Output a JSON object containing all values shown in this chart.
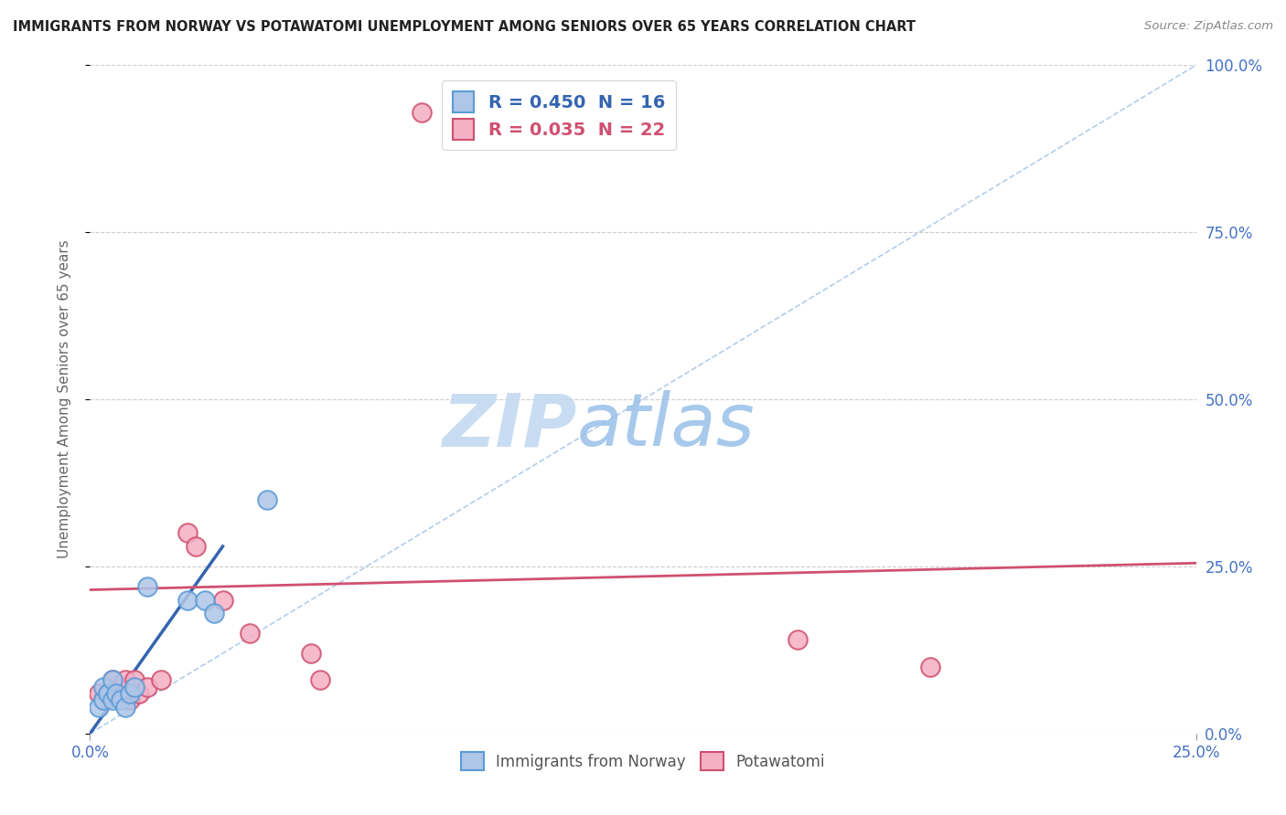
{
  "title": "IMMIGRANTS FROM NORWAY VS POTAWATOMI UNEMPLOYMENT AMONG SENIORS OVER 65 YEARS CORRELATION CHART",
  "source": "Source: ZipAtlas.com",
  "ylabel": "Unemployment Among Seniors over 65 years",
  "xlim": [
    0.0,
    0.25
  ],
  "ylim": [
    0.0,
    1.0
  ],
  "ytick_vals": [
    0.0,
    0.25,
    0.5,
    0.75,
    1.0
  ],
  "ytick_labels": [
    "0.0%",
    "25.0%",
    "50.0%",
    "75.0%",
    "100.0%"
  ],
  "xtick_vals": [
    0.0,
    0.25
  ],
  "xtick_labels": [
    "0.0%",
    "25.0%"
  ],
  "norway_color": "#aec6e8",
  "norway_edge": "#5b9bd5",
  "potawatomi_color": "#f4b0c4",
  "potawatomi_edge": "#d05070",
  "trendline_norway_color": "#3464b0",
  "trendline_potawatomi_color": "#d05070",
  "diagonal_color": "#aac8e8",
  "watermark_zip": "ZIP",
  "watermark_atlas": "atlas",
  "watermark_color_zip": "#c0d8f0",
  "watermark_color_atlas": "#98c0e8",
  "norway_r": "R = 0.450",
  "norway_n": "N = 16",
  "potawatomi_r": "R = 0.035",
  "potawatomi_n": "N = 22",
  "norway_x": [
    0.002,
    0.003,
    0.003,
    0.004,
    0.005,
    0.005,
    0.006,
    0.007,
    0.008,
    0.009,
    0.01,
    0.013,
    0.022,
    0.026,
    0.028,
    0.04
  ],
  "norway_y": [
    0.04,
    0.05,
    0.07,
    0.06,
    0.05,
    0.08,
    0.06,
    0.05,
    0.04,
    0.06,
    0.07,
    0.22,
    0.2,
    0.2,
    0.18,
    0.35
  ],
  "potawatomi_x": [
    0.002,
    0.003,
    0.004,
    0.005,
    0.005,
    0.006,
    0.007,
    0.008,
    0.009,
    0.01,
    0.011,
    0.013,
    0.016,
    0.022,
    0.024,
    0.03,
    0.036,
    0.05,
    0.052,
    0.16,
    0.19,
    0.075
  ],
  "potawatomi_y": [
    0.06,
    0.05,
    0.06,
    0.07,
    0.08,
    0.06,
    0.07,
    0.08,
    0.05,
    0.08,
    0.06,
    0.07,
    0.08,
    0.3,
    0.28,
    0.2,
    0.15,
    0.12,
    0.08,
    0.14,
    0.1,
    0.93
  ],
  "norway_trend_x": [
    0.0,
    0.03
  ],
  "norway_trend_y": [
    0.0,
    0.28
  ],
  "potawatomi_trend_x": [
    0.0,
    0.25
  ],
  "potawatomi_trend_y": [
    0.215,
    0.255
  ]
}
